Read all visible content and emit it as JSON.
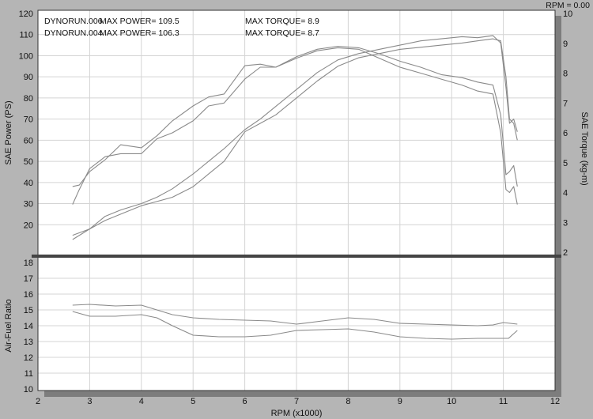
{
  "header": {
    "rpm_readout": "RPM = 0.00"
  },
  "legend_rows": [
    {
      "run": "DYNORUN.006",
      "power": "MAX POWER= 109.5",
      "torque": "MAX TORQUE= 8.9"
    },
    {
      "run": "DYNORUN.004",
      "power": "MAX POWER= 106.3",
      "torque": "MAX TORQUE= 8.7"
    }
  ],
  "colors": {
    "background": "#b5b5b5",
    "plot": "#ffffff",
    "curve": "#8a8a8a",
    "divider": "#444444"
  },
  "chart_data": [
    {
      "type": "line",
      "title": "",
      "xlabel": "RPM (x1000)",
      "ylabel": "SAE Power (PS)",
      "y2label": "SAE Torque (kg-m)",
      "xlim": [
        2,
        12
      ],
      "ylim": [
        10,
        120
      ],
      "y2lim": [
        2,
        10
      ],
      "x_ticks": [
        "2",
        "3",
        "4",
        "5",
        "6",
        "7",
        "8",
        "9",
        "10",
        "11",
        "12"
      ],
      "y_ticks": [
        "20",
        "30",
        "40",
        "50",
        "60",
        "70",
        "80",
        "90",
        "100",
        "110",
        "120"
      ],
      "y2_ticks": [
        "2",
        "3",
        "4",
        "5",
        "6",
        "7",
        "8",
        "9",
        "10"
      ],
      "grid": true,
      "series": [
        {
          "axis": "left",
          "x": [
            2.67,
            3.0,
            3.3,
            3.6,
            4.0,
            4.3,
            4.6,
            5.0,
            5.3,
            5.6,
            6.0,
            6.3,
            6.6,
            7.0,
            7.4,
            7.8,
            8.2,
            8.6,
            9.0,
            9.4,
            9.8,
            10.2,
            10.5,
            10.8,
            10.95,
            11.05,
            11.12,
            11.2,
            11.27
          ],
          "y": [
            15,
            18,
            22,
            25,
            29,
            31,
            33,
            38,
            44,
            50,
            64,
            68,
            72,
            80,
            88,
            95,
            99,
            101,
            103,
            104,
            105,
            106,
            107,
            108,
            107,
            90,
            70,
            68,
            60
          ]
        },
        {
          "axis": "left",
          "x": [
            2.67,
            3.0,
            3.3,
            3.6,
            4.0,
            4.3,
            4.6,
            5.0,
            5.3,
            5.6,
            6.0,
            6.3,
            6.6,
            7.0,
            7.4,
            7.8,
            8.2,
            8.6,
            9.0,
            9.4,
            9.8,
            10.2,
            10.5,
            10.8,
            10.95,
            11.05,
            11.12,
            11.2,
            11.27
          ],
          "y": [
            13,
            18,
            24,
            27,
            30,
            33,
            37,
            44,
            50,
            56,
            65,
            70,
            76,
            84,
            92,
            98,
            101,
            103,
            105,
            107,
            108,
            109,
            108.5,
            109.5,
            106,
            85,
            68,
            70,
            64
          ]
        },
        {
          "axis": "right",
          "x": [
            2.67,
            2.8,
            3.0,
            3.3,
            3.6,
            4.0,
            4.3,
            4.6,
            5.0,
            5.3,
            5.6,
            6.0,
            6.3,
            6.6,
            7.0,
            7.4,
            7.8,
            8.2,
            8.6,
            9.0,
            9.4,
            9.8,
            10.2,
            10.5,
            10.8,
            10.95,
            11.05,
            11.12,
            11.2,
            11.27
          ],
          "y": [
            3.6,
            4.1,
            4.8,
            5.2,
            5.3,
            5.3,
            5.8,
            6.0,
            6.4,
            6.9,
            7.0,
            7.8,
            8.2,
            8.2,
            8.5,
            8.75,
            8.85,
            8.8,
            8.5,
            8.2,
            8.0,
            7.8,
            7.6,
            7.4,
            7.3,
            6.0,
            4.1,
            4.0,
            4.2,
            3.6
          ]
        },
        {
          "axis": "right",
          "x": [
            2.67,
            2.8,
            3.0,
            3.3,
            3.6,
            4.0,
            4.3,
            4.6,
            5.0,
            5.3,
            5.6,
            6.0,
            6.3,
            6.6,
            7.0,
            7.4,
            7.8,
            8.2,
            8.6,
            9.0,
            9.4,
            9.8,
            10.2,
            10.5,
            10.8,
            10.95,
            11.05,
            11.12,
            11.2,
            11.27
          ],
          "y": [
            4.2,
            4.25,
            4.7,
            5.1,
            5.6,
            5.5,
            5.9,
            6.4,
            6.9,
            7.2,
            7.3,
            8.25,
            8.3,
            8.2,
            8.55,
            8.8,
            8.9,
            8.85,
            8.65,
            8.4,
            8.2,
            7.95,
            7.85,
            7.7,
            7.6,
            6.6,
            4.6,
            4.7,
            4.9,
            4.2
          ]
        }
      ]
    },
    {
      "type": "line",
      "title": "",
      "xlabel": "RPM (x1000)",
      "ylabel": "Air-Fuel Ratio",
      "xlim": [
        2,
        12
      ],
      "ylim": [
        10,
        18
      ],
      "y_ticks": [
        "10",
        "11",
        "12",
        "13",
        "14",
        "15",
        "16",
        "17",
        "18"
      ],
      "grid": true,
      "series": [
        {
          "x": [
            2.67,
            3.0,
            3.5,
            4.0,
            4.3,
            4.6,
            5.0,
            5.5,
            6.0,
            6.5,
            7.0,
            7.5,
            8.0,
            8.5,
            9.0,
            9.5,
            10.0,
            10.5,
            10.8,
            11.0,
            11.27
          ],
          "y": [
            15.3,
            15.35,
            15.25,
            15.3,
            15.0,
            14.7,
            14.5,
            14.4,
            14.35,
            14.3,
            14.1,
            14.3,
            14.5,
            14.4,
            14.15,
            14.1,
            14.05,
            14.0,
            14.05,
            14.2,
            14.1
          ]
        },
        {
          "x": [
            2.67,
            3.0,
            3.5,
            4.0,
            4.3,
            4.6,
            5.0,
            5.5,
            6.0,
            6.5,
            7.0,
            7.5,
            8.0,
            8.5,
            9.0,
            9.5,
            10.0,
            10.5,
            10.8,
            11.1,
            11.27
          ],
          "y": [
            14.9,
            14.6,
            14.6,
            14.7,
            14.5,
            14.0,
            13.4,
            13.3,
            13.3,
            13.4,
            13.7,
            13.75,
            13.8,
            13.6,
            13.3,
            13.2,
            13.15,
            13.2,
            13.2,
            13.2,
            13.7
          ]
        }
      ]
    }
  ]
}
